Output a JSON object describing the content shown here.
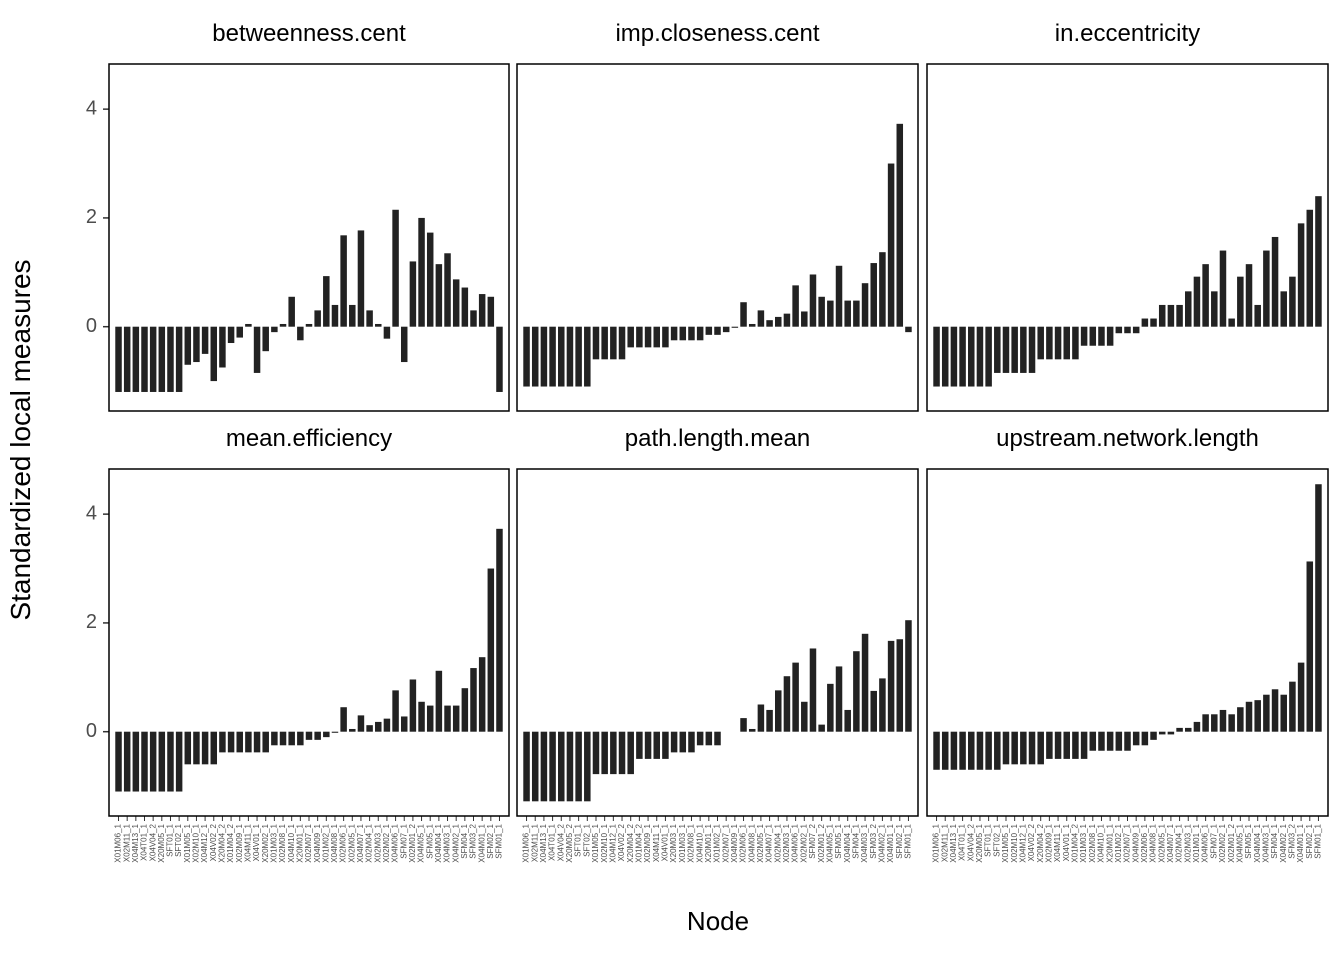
{
  "x_label": "Node",
  "y_label": "Standardized local measures",
  "ylim": [
    -1.55,
    4.83
  ],
  "yticks": [
    0,
    2,
    4
  ],
  "chart_data": [
    {
      "type": "bar",
      "title": "betweenness.cent",
      "color": "#222222",
      "values": [
        -1.2,
        -1.2,
        -1.2,
        -1.2,
        -1.2,
        -1.2,
        -1.2,
        -1.2,
        -0.7,
        -0.65,
        -0.5,
        -1.0,
        -0.75,
        -0.3,
        -0.2,
        0.05,
        -0.85,
        -0.45,
        -0.1,
        0.05,
        0.55,
        -0.25,
        0.05,
        0.3,
        0.93,
        0.4,
        1.68,
        0.4,
        1.77,
        0.3,
        0.05,
        -0.22,
        2.15,
        -0.65,
        1.2,
        2.0,
        1.73,
        1.15,
        1.35,
        0.87,
        0.72,
        0.3,
        0.6,
        0.55,
        -1.2
      ]
    },
    {
      "type": "bar",
      "title": "imp.closeness.cent",
      "color": "#222222",
      "values": [
        -1.1,
        -1.1,
        -1.1,
        -1.1,
        -1.1,
        -1.1,
        -1.1,
        -1.1,
        -0.6,
        -0.6,
        -0.6,
        -0.6,
        -0.38,
        -0.38,
        -0.38,
        -0.38,
        -0.38,
        -0.25,
        -0.25,
        -0.25,
        -0.25,
        -0.15,
        -0.15,
        -0.1,
        -0.02,
        0.45,
        0.05,
        0.3,
        0.12,
        0.18,
        0.24,
        0.76,
        0.28,
        0.96,
        0.55,
        0.48,
        1.12,
        0.48,
        0.48,
        0.8,
        1.17,
        1.37,
        3.0,
        3.73,
        -0.1
      ]
    },
    {
      "type": "bar",
      "title": "in.eccentricity",
      "color": "#222222",
      "values": [
        -1.1,
        -1.1,
        -1.1,
        -1.1,
        -1.1,
        -1.1,
        -1.1,
        -0.85,
        -0.85,
        -0.85,
        -0.85,
        -0.85,
        -0.6,
        -0.6,
        -0.6,
        -0.6,
        -0.6,
        -0.35,
        -0.35,
        -0.35,
        -0.35,
        -0.12,
        -0.12,
        -0.12,
        0.15,
        0.15,
        0.4,
        0.4,
        0.4,
        0.65,
        0.92,
        1.15,
        0.65,
        1.4,
        0.15,
        0.92,
        1.15,
        0.4,
        1.4,
        1.65,
        0.65,
        0.92,
        1.9,
        2.15,
        2.4
      ]
    },
    {
      "type": "bar",
      "title": "mean.efficiency",
      "color": "#222222",
      "categories": [
        "X01M06_1",
        "X02M11_1",
        "X04M13_1",
        "X04T01_1",
        "X04V04_2",
        "X20M05_1",
        "SFT01_1",
        "SFT02_1",
        "X01M05_1",
        "X02M10_1",
        "X04M12_1",
        "X04V02_2",
        "X20M04_2",
        "X01M04_2",
        "X02M09_1",
        "X04M11_1",
        "X04V01_1",
        "X20M02_1",
        "X01M03_1",
        "X02M08_1",
        "X04M10_1",
        "X20M01_1",
        "X02M07_1",
        "X04M09_1",
        "X01M02_1",
        "X04M08_1",
        "X02M06_1",
        "X02M05_1",
        "X04M07_1",
        "X02M04_1",
        "X02M03_1",
        "X02M02_1",
        "X04M06_1",
        "SFM07_1",
        "X02M01_2",
        "X04M05_1",
        "SFM05_1",
        "X04M04_1",
        "X04M03_1",
        "X04M02_1",
        "SFM04_1",
        "SFM03_2",
        "X04M01_1",
        "SFM02_1",
        "SFM01_1"
      ],
      "values": [
        -1.1,
        -1.1,
        -1.1,
        -1.1,
        -1.1,
        -1.1,
        -1.1,
        -1.1,
        -0.6,
        -0.6,
        -0.6,
        -0.6,
        -0.38,
        -0.38,
        -0.38,
        -0.38,
        -0.38,
        -0.38,
        -0.25,
        -0.25,
        -0.25,
        -0.25,
        -0.15,
        -0.15,
        -0.1,
        -0.02,
        0.45,
        0.05,
        0.3,
        0.12,
        0.18,
        0.24,
        0.76,
        0.28,
        0.96,
        0.55,
        0.48,
        1.12,
        0.48,
        0.48,
        0.8,
        1.17,
        1.37,
        3.0,
        3.73
      ]
    },
    {
      "type": "bar",
      "title": "path.length.mean",
      "color": "#222222",
      "categories": [
        "X01M06_1",
        "X02M11_1",
        "X04M13_1",
        "X04T01_1",
        "X04V04_2",
        "X20M05_2",
        "SFT01_1",
        "SFT02_1",
        "X01M05_1",
        "X02M10_1",
        "X04M12_1",
        "X04V02_2",
        "X20M04_2",
        "X01M04_2",
        "X02M09_1",
        "X04M11_1",
        "X04V01_1",
        "X20M03_1",
        "X01M03_1",
        "X02M08_1",
        "X04M10_1",
        "X20M01_1",
        "X01M02_1",
        "X02M07_1",
        "X04M09_1",
        "X02M06_1",
        "X04M08_1",
        "X02M05_1",
        "X04M07_1",
        "X02M04_1",
        "X02M03_1",
        "X04M06_1",
        "X02M02_1",
        "SFM07_2",
        "X02M01_2",
        "X04M05_1",
        "SFM05_1",
        "X04M04_1",
        "SFM04_1",
        "X04M03_1",
        "SFM03_2",
        "X04M02_1",
        "X04M01_1",
        "SFM02_1",
        "SFM01_1"
      ],
      "values": [
        -1.28,
        -1.28,
        -1.28,
        -1.28,
        -1.28,
        -1.28,
        -1.28,
        -1.28,
        -0.78,
        -0.78,
        -0.78,
        -0.78,
        -0.78,
        -0.5,
        -0.5,
        -0.5,
        -0.5,
        -0.38,
        -0.38,
        -0.38,
        -0.25,
        -0.25,
        -0.25,
        0,
        0,
        0.25,
        0.05,
        0.5,
        0.4,
        0.76,
        1.02,
        1.27,
        0.55,
        1.53,
        0.13,
        0.88,
        1.2,
        0.4,
        1.48,
        1.8,
        0.75,
        0.98,
        1.67,
        1.7,
        2.05
      ]
    },
    {
      "type": "bar",
      "title": "upstream.network.length",
      "color": "#222222",
      "categories": [
        "X01M06_1",
        "X02M11_1",
        "X04M13_1",
        "X04T01_1",
        "X04V04_2",
        "X20M05_1",
        "SFT01_1",
        "SFT02_1",
        "X01M05_1",
        "X02M10_1",
        "X04M12_1",
        "X04V02_2",
        "X20M04_2",
        "X02M09_1",
        "X04M11_1",
        "X04V01_1",
        "X01M04_2",
        "X01M03_1",
        "X02M08_1",
        "X04M10_1",
        "X20M01_1",
        "X01M02_1",
        "X02M07_1",
        "X04M09_1",
        "X02M06_1",
        "X04M08_1",
        "X02M05_1",
        "X04M07_1",
        "X02M04_1",
        "X02M03_1",
        "X01M01_1",
        "X04M06_1",
        "SFM07_1",
        "X02M02_1",
        "X02M01_2",
        "X04M05_1",
        "SFM05_1",
        "X04M04_1",
        "X04M03_1",
        "SFM04_1",
        "X04M02_1",
        "SFM03_2",
        "X04M01_1",
        "SFM02_1",
        "SFM01_1"
      ],
      "values": [
        -0.7,
        -0.7,
        -0.7,
        -0.7,
        -0.7,
        -0.7,
        -0.7,
        -0.7,
        -0.6,
        -0.6,
        -0.6,
        -0.6,
        -0.6,
        -0.5,
        -0.5,
        -0.5,
        -0.5,
        -0.5,
        -0.35,
        -0.35,
        -0.35,
        -0.35,
        -0.35,
        -0.25,
        -0.25,
        -0.15,
        -0.05,
        -0.05,
        0.07,
        0.07,
        0.18,
        0.32,
        0.32,
        0.4,
        0.32,
        0.45,
        0.55,
        0.58,
        0.68,
        0.78,
        0.68,
        0.92,
        1.27,
        3.13,
        4.55
      ]
    }
  ]
}
